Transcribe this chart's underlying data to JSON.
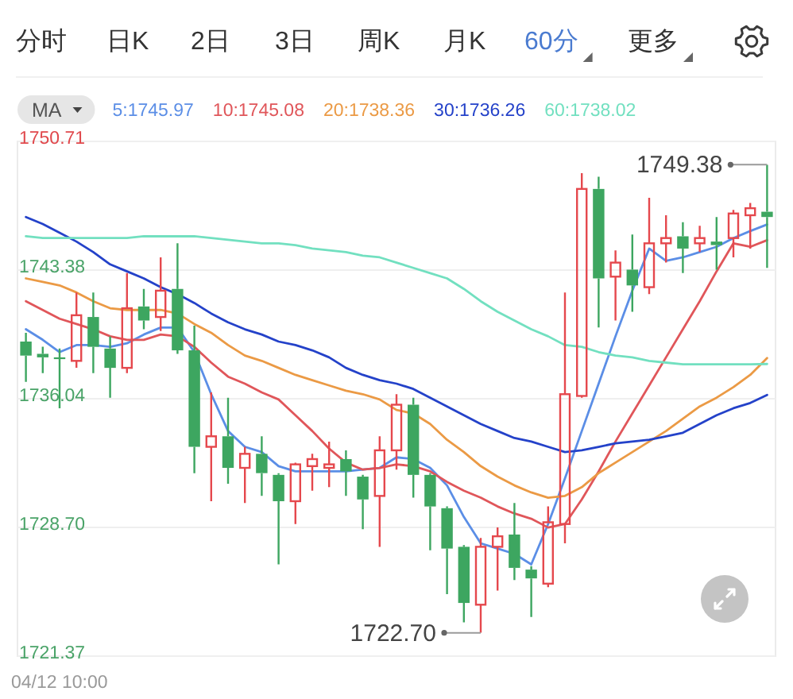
{
  "chart_data": {
    "type": "candlestick",
    "annotations": [
      "分时",
      "日K",
      "2日",
      "3日",
      "周K",
      "月K",
      "60分",
      "更多",
      "04/12 10:00",
      "1749.38",
      "1722.70"
    ],
    "categories": [
      null,
      null,
      null,
      null,
      null,
      null,
      null,
      null,
      null,
      null,
      null,
      null,
      null,
      null,
      null,
      null,
      null,
      null,
      null,
      null,
      null,
      null,
      null,
      null,
      null,
      null,
      null,
      null,
      null,
      null,
      null,
      null,
      null,
      null,
      null,
      null,
      null,
      null,
      null,
      null,
      null,
      null,
      null,
      null,
      null
    ],
    "ohlc": [
      [
        1739.3,
        1739.8,
        1737.0,
        1738.5
      ],
      [
        1738.6,
        1739.0,
        1737.5,
        1738.4
      ],
      [
        1738.4,
        1738.9,
        1735.5,
        1738.3
      ],
      [
        1738.2,
        1742.1,
        1737.8,
        1740.8
      ],
      [
        1740.7,
        1742.1,
        1737.5,
        1739.0
      ],
      [
        1738.9,
        1739.6,
        1736.1,
        1737.8
      ],
      [
        1737.8,
        1743.2,
        1737.5,
        1741.2
      ],
      [
        1741.3,
        1742.3,
        1740.0,
        1740.5
      ],
      [
        1740.7,
        1744.1,
        1739.9,
        1742.2
      ],
      [
        1742.3,
        1744.9,
        1738.6,
        1738.8
      ],
      [
        1738.8,
        1740.2,
        1731.8,
        1733.3
      ],
      [
        1733.3,
        1736.4,
        1730.2,
        1733.9
      ],
      [
        1733.9,
        1736.1,
        1731.2,
        1732.1
      ],
      [
        1732.1,
        1733.3,
        1730.1,
        1732.9
      ],
      [
        1732.9,
        1733.9,
        1730.5,
        1731.8
      ],
      [
        1731.7,
        1731.8,
        1726.6,
        1730.2
      ],
      [
        1730.2,
        1732.4,
        1728.9,
        1732.3
      ],
      [
        1732.2,
        1732.9,
        1730.8,
        1732.6
      ],
      [
        1732.1,
        1733.6,
        1731.0,
        1732.3
      ],
      [
        1732.6,
        1733.1,
        1730.5,
        1731.9
      ],
      [
        1731.6,
        1731.7,
        1728.6,
        1730.3
      ],
      [
        1730.5,
        1733.9,
        1727.6,
        1733.1
      ],
      [
        1733.1,
        1736.3,
        1732.0,
        1735.7
      ],
      [
        1735.7,
        1736.1,
        1730.4,
        1731.7
      ],
      [
        1731.7,
        1731.8,
        1727.4,
        1729.9
      ],
      [
        1729.8,
        1729.9,
        1724.9,
        1727.5
      ],
      [
        1727.6,
        1727.7,
        1723.3,
        1724.4
      ],
      [
        1724.3,
        1728.1,
        1722.7,
        1727.6
      ],
      [
        1727.6,
        1728.7,
        1725.1,
        1728.2
      ],
      [
        1728.3,
        1730.1,
        1725.7,
        1726.4
      ],
      [
        1726.3,
        1726.5,
        1723.6,
        1725.8
      ],
      [
        1725.5,
        1729.9,
        1725.3,
        1729.0
      ],
      [
        1728.9,
        1742.1,
        1727.8,
        1736.3
      ],
      [
        1736.2,
        1748.9,
        1736.1,
        1748.0
      ],
      [
        1748.0,
        1748.7,
        1740.1,
        1742.9
      ],
      [
        1743.0,
        1744.5,
        1740.5,
        1743.8
      ],
      [
        1743.4,
        1745.4,
        1741.0,
        1742.5
      ],
      [
        1742.4,
        1747.5,
        1742.0,
        1744.9
      ],
      [
        1744.9,
        1746.5,
        1743.8,
        1745.2
      ],
      [
        1745.3,
        1746.1,
        1743.2,
        1744.6
      ],
      [
        1744.9,
        1745.9,
        1744.4,
        1745.2
      ],
      [
        1745.0,
        1746.4,
        1743.4,
        1744.8
      ],
      [
        1745.2,
        1746.8,
        1744.1,
        1746.6
      ],
      [
        1746.5,
        1747.2,
        1744.6,
        1746.9
      ],
      [
        1746.7,
        1749.38,
        1743.5,
        1746.4
      ]
    ],
    "colors": [
      "#3da660",
      "#3da660",
      "#3da660",
      "#e5484d",
      "#3da660",
      "#3da660",
      "#e5484d",
      "#3da660",
      "#e5484d",
      "#3da660",
      "#3da660",
      "#e5484d",
      "#3da660",
      "#e5484d",
      "#3da660",
      "#3da660",
      "#e5484d",
      "#e5484d",
      "#e5484d",
      "#3da660",
      "#3da660",
      "#e5484d",
      "#e5484d",
      "#3da660",
      "#3da660",
      "#3da660",
      "#3da660",
      "#e5484d",
      "#e5484d",
      "#3da660",
      "#3da660",
      "#e5484d",
      "#e5484d",
      "#e5484d",
      "#3da660",
      "#e5484d",
      "#3da660",
      "#e5484d",
      "#e5484d",
      "#3da660",
      "#e5484d",
      "#3da660",
      "#e5484d",
      "#e5484d",
      "#3da660"
    ],
    "ylim": [
      1721.37,
      1750.71
    ],
    "yticks": [
      1721.37,
      {
        "value": 1728.7,
        "label": "1728.70"
      },
      1736.04,
      1743.38,
      1750.71
    ],
    "grid": "y",
    "legend": "top left",
    "legend_title": "MA",
    "series": [
      {
        "name": "5:1745.97",
        "type": "line",
        "color": "#5b8ee6",
        "values": [
          1740.0,
          1739.4,
          1738.7,
          1739.1,
          1739.1,
          1739.0,
          1739.2,
          1739.7,
          1740.1,
          1740.1,
          1738.7,
          1736.3,
          1734.2,
          1733.3,
          1733.0,
          1732.2,
          1731.9,
          1731.9,
          1731.9,
          1731.9,
          1732.0,
          1732.1,
          1732.7,
          1732.6,
          1732.1,
          1731.1,
          1729.3,
          1727.8,
          1727.5,
          1727.2,
          1726.6,
          1728.9,
          1731.5,
          1734.2,
          1736.9,
          1739.6,
          1742.2,
          1744.6,
          1743.9,
          1744.1,
          1744.4,
          1744.7,
          1745.2,
          1745.6,
          1745.97
        ]
      },
      {
        "name": "10:1745.08",
        "type": "line",
        "color": "#e0565a",
        "values": [
          1741.6,
          1741.1,
          1740.6,
          1740.3,
          1740.0,
          1739.6,
          1739.4,
          1739.4,
          1739.7,
          1739.6,
          1739.0,
          1738.1,
          1737.3,
          1736.9,
          1736.4,
          1736.0,
          1735.1,
          1734.2,
          1733.2,
          1732.4,
          1732.0,
          1732.1,
          1732.3,
          1732.2,
          1731.9,
          1731.3,
          1730.8,
          1730.4,
          1729.9,
          1729.5,
          1729.2,
          1728.7,
          1728.9,
          1730.3,
          1731.9,
          1733.6,
          1735.2,
          1736.8,
          1738.4,
          1740.0,
          1741.6,
          1743.3,
          1744.9,
          1744.7,
          1745.08
        ]
      },
      {
        "name": "20:1738.36",
        "type": "line",
        "color": "#eb9a45",
        "values": [
          1742.9,
          1742.7,
          1742.5,
          1742.1,
          1741.6,
          1741.2,
          1741.1,
          1741.1,
          1741.1,
          1740.9,
          1740.3,
          1739.8,
          1739.1,
          1738.5,
          1738.2,
          1737.8,
          1737.4,
          1737.1,
          1736.8,
          1736.5,
          1736.3,
          1736.0,
          1735.4,
          1735.2,
          1734.6,
          1733.7,
          1733.0,
          1732.2,
          1731.6,
          1731.1,
          1730.7,
          1730.4,
          1730.5,
          1731.0,
          1731.8,
          1732.4,
          1733.0,
          1733.6,
          1734.2,
          1734.9,
          1735.6,
          1736.1,
          1736.7,
          1737.4,
          1738.36
        ]
      },
      {
        "name": "30:1736.26",
        "type": "line",
        "color": "#2442c9",
        "values": [
          1746.4,
          1746.0,
          1745.5,
          1745.0,
          1744.4,
          1743.7,
          1743.3,
          1742.9,
          1742.4,
          1742.0,
          1741.5,
          1740.9,
          1740.4,
          1740.0,
          1739.7,
          1739.3,
          1739.1,
          1738.8,
          1738.4,
          1737.8,
          1737.4,
          1737.1,
          1736.9,
          1736.6,
          1736.1,
          1735.6,
          1735.1,
          1734.6,
          1734.2,
          1733.8,
          1733.6,
          1733.3,
          1733.0,
          1733.1,
          1733.3,
          1733.5,
          1733.6,
          1733.7,
          1733.9,
          1734.1,
          1734.6,
          1735.1,
          1735.5,
          1735.8,
          1736.26
        ]
      },
      {
        "name": "60:1738.02",
        "type": "line",
        "color": "#72e0c0",
        "values": [
          1745.3,
          1745.2,
          1745.2,
          1745.2,
          1745.2,
          1745.2,
          1745.2,
          1745.3,
          1745.3,
          1745.3,
          1745.3,
          1745.2,
          1745.1,
          1745.0,
          1744.9,
          1744.9,
          1744.8,
          1744.6,
          1744.5,
          1744.4,
          1744.2,
          1744.1,
          1743.8,
          1743.5,
          1743.2,
          1742.9,
          1742.3,
          1741.6,
          1741.0,
          1740.5,
          1740.0,
          1739.6,
          1739.1,
          1739.0,
          1738.7,
          1738.5,
          1738.4,
          1738.2,
          1738.1,
          1738.0,
          1738.0,
          1738.0,
          1738.0,
          1738.0,
          1738.02
        ]
      }
    ]
  }
}
